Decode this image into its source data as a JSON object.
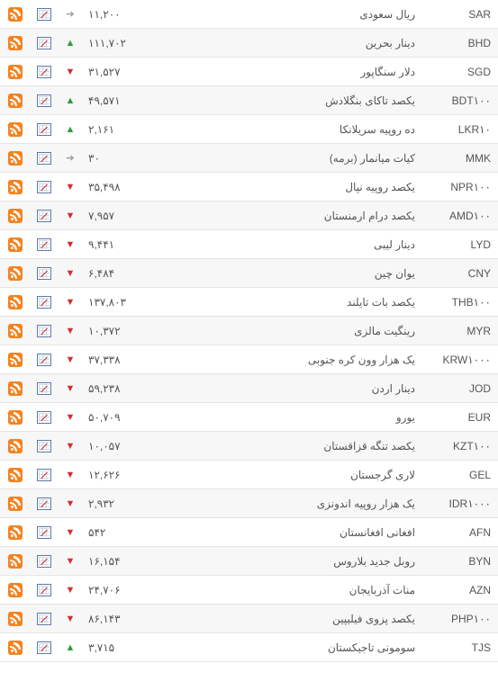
{
  "rows": [
    {
      "code": "SAR",
      "name": "ریال سعودی",
      "value": "۱۱,۲۰۰",
      "trend": "neutral"
    },
    {
      "code": "BHD",
      "name": "دینار بحرین",
      "value": "۱۱۱,۷۰۲",
      "trend": "up"
    },
    {
      "code": "SGD",
      "name": "دلار سنگاپور",
      "value": "۳۱,۵۲۷",
      "trend": "down"
    },
    {
      "code": "BDT۱۰۰",
      "name": "یکصد تاکای بنگلادش",
      "value": "۴۹,۵۷۱",
      "trend": "up"
    },
    {
      "code": "LKR۱۰",
      "name": "ده روپیه سریلانکا",
      "value": "۲,۱۶۱",
      "trend": "up"
    },
    {
      "code": "MMK",
      "name": "کیات میانمار (برمه)",
      "value": "۳۰",
      "trend": "neutral"
    },
    {
      "code": "NPR۱۰۰",
      "name": "یکصد روپیه نپال",
      "value": "۳۵,۴۹۸",
      "trend": "down"
    },
    {
      "code": "AMD۱۰۰",
      "name": "یکصد درام ارمنستان",
      "value": "۷,۹۵۷",
      "trend": "down"
    },
    {
      "code": "LYD",
      "name": "دینار لیبی",
      "value": "۹,۴۴۱",
      "trend": "down"
    },
    {
      "code": "CNY",
      "name": "یوان چین",
      "value": "۶,۴۸۴",
      "trend": "down"
    },
    {
      "code": "THB۱۰۰",
      "name": "یکصد بات تایلند",
      "value": "۱۳۷,۸۰۳",
      "trend": "down"
    },
    {
      "code": "MYR",
      "name": "رینگیت مالزی",
      "value": "۱۰,۳۷۲",
      "trend": "down"
    },
    {
      "code": "KRW۱۰۰۰",
      "name": "یک هزار وون کره جنوبی",
      "value": "۳۷,۳۳۸",
      "trend": "down"
    },
    {
      "code": "JOD",
      "name": "دینار اردن",
      "value": "۵۹,۲۳۸",
      "trend": "down"
    },
    {
      "code": "EUR",
      "name": "یورو",
      "value": "۵۰,۷۰۹",
      "trend": "down"
    },
    {
      "code": "KZT۱۰۰",
      "name": "یکصد تنگه قزاقستان",
      "value": "۱۰,۰۵۷",
      "trend": "down"
    },
    {
      "code": "GEL",
      "name": "لاری گرجستان",
      "value": "۱۲,۶۲۶",
      "trend": "down"
    },
    {
      "code": "IDR۱۰۰۰",
      "name": "یک هزار روپیه اندونزی",
      "value": "۲,۹۳۲",
      "trend": "down"
    },
    {
      "code": "AFN",
      "name": "افغانی افغانستان",
      "value": "۵۴۲",
      "trend": "down"
    },
    {
      "code": "BYN",
      "name": "روبل جدید بلاروس",
      "value": "۱۶,۱۵۴",
      "trend": "down"
    },
    {
      "code": "AZN",
      "name": "منات آذربایجان",
      "value": "۲۴,۷۰۶",
      "trend": "down"
    },
    {
      "code": "PHP۱۰۰",
      "name": "یکصد پزوی فیلیپین",
      "value": "۸۶,۱۴۳",
      "trend": "down"
    },
    {
      "code": "TJS",
      "name": "سومونی تاجیکستان",
      "value": "۳,۷۱۵",
      "trend": "up"
    }
  ],
  "arrows": {
    "up": "▲",
    "down": "▼",
    "neutral": "➔"
  },
  "arrow_colors": {
    "up": "#2e9b3a",
    "down": "#d32f2f",
    "neutral": "#999999"
  }
}
